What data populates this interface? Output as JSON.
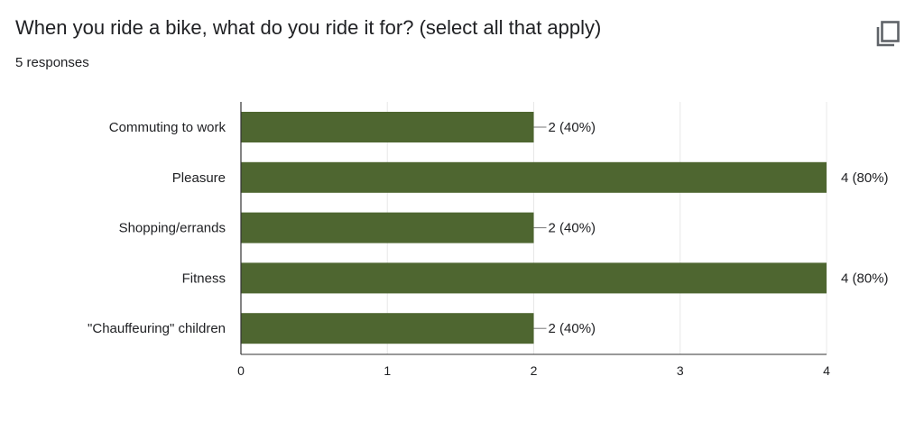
{
  "header": {
    "title": "When you ride a bike, what do you ride it for? (select all that apply)",
    "responses": "5 responses",
    "copy_icon": "copy-icon"
  },
  "colors": {
    "bar": "#4e6630",
    "grid": "#e8e8e8",
    "axis": "#333333",
    "text": "#202124"
  },
  "chart_data": {
    "type": "bar",
    "orientation": "horizontal",
    "title": "",
    "xlabel": "",
    "ylabel": "",
    "categories": [
      "Commuting to work",
      "Pleasure",
      "Shopping/errands",
      "Fitness",
      "\"Chauffeuring\" children"
    ],
    "values": [
      2,
      4,
      2,
      4,
      2
    ],
    "data_labels": [
      "2 (40%)",
      "4 (80%)",
      "2 (40%)",
      "4 (80%)",
      "2 (40%)"
    ],
    "xlim": [
      0,
      4
    ],
    "x_ticks": [
      "0",
      "1",
      "2",
      "3",
      "4"
    ],
    "grid": true,
    "legend": "none"
  }
}
